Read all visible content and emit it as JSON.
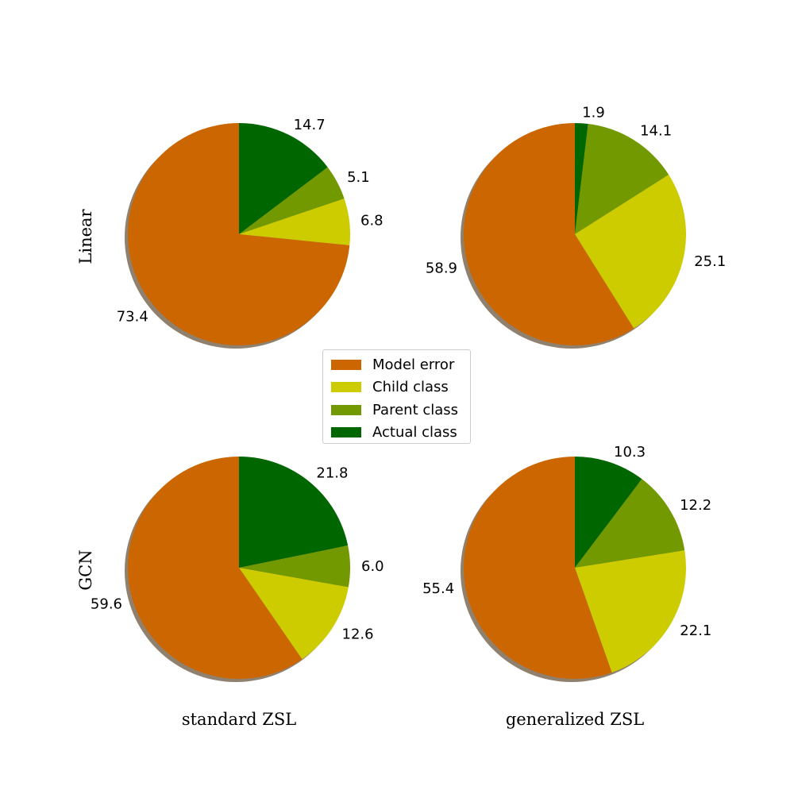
{
  "chart_data": {
    "type": "pie",
    "row_labels": [
      "Linear",
      "GCN"
    ],
    "column_labels": [
      "standard ZSL",
      "generalized ZSL"
    ],
    "legend": {
      "placement": "center",
      "entries": [
        {
          "label": "Model error",
          "color": "#cc6600"
        },
        {
          "label": "Child class",
          "color": "#cccc00"
        },
        {
          "label": "Parent class",
          "color": "#739900"
        },
        {
          "label": "Actual class",
          "color": "#006600"
        }
      ]
    },
    "pies": [
      {
        "row": "Linear",
        "column": "standard ZSL",
        "slices": [
          {
            "label": "Actual class",
            "value": 14.7,
            "text": "14.7"
          },
          {
            "label": "Parent class",
            "value": 5.1,
            "text": "5.1"
          },
          {
            "label": "Child class",
            "value": 6.8,
            "text": "6.8"
          },
          {
            "label": "Model error",
            "value": 73.4,
            "text": "73.4"
          }
        ]
      },
      {
        "row": "Linear",
        "column": "generalized ZSL",
        "slices": [
          {
            "label": "Actual class",
            "value": 1.9,
            "text": "1.9"
          },
          {
            "label": "Parent class",
            "value": 14.1,
            "text": "14.1"
          },
          {
            "label": "Child class",
            "value": 25.1,
            "text": "25.1"
          },
          {
            "label": "Model error",
            "value": 58.9,
            "text": "58.9"
          }
        ]
      },
      {
        "row": "GCN",
        "column": "standard ZSL",
        "slices": [
          {
            "label": "Actual class",
            "value": 21.8,
            "text": "21.8"
          },
          {
            "label": "Parent class",
            "value": 6.0,
            "text": "6.0"
          },
          {
            "label": "Child class",
            "value": 12.6,
            "text": "12.6"
          },
          {
            "label": "Model error",
            "value": 59.6,
            "text": "59.6"
          }
        ]
      },
      {
        "row": "GCN",
        "column": "generalized ZSL",
        "slices": [
          {
            "label": "Actual class",
            "value": 10.3,
            "text": "10.3"
          },
          {
            "label": "Parent class",
            "value": 12.2,
            "text": "12.2"
          },
          {
            "label": "Child class",
            "value": 22.1,
            "text": "22.1"
          },
          {
            "label": "Model error",
            "value": 55.4,
            "text": "55.4"
          }
        ]
      }
    ]
  }
}
